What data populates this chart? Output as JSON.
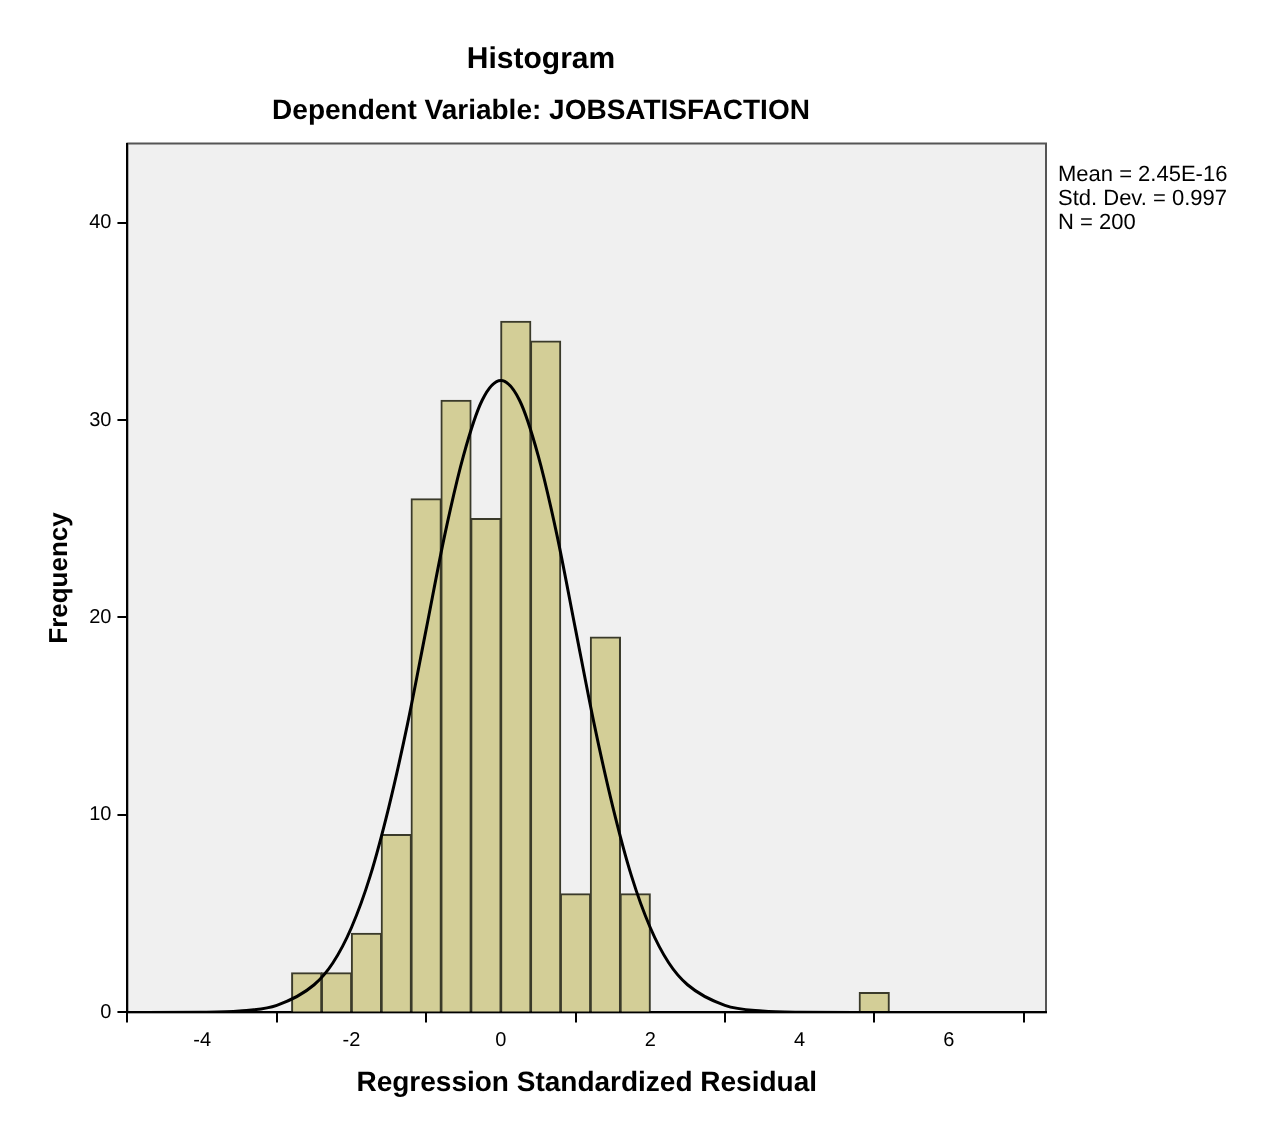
{
  "chart_data": {
    "type": "histogram",
    "title": "Histogram",
    "subtitle": "Dependent Variable: JOBSATISFACTION",
    "xlabel": "Regression Standardized Residual",
    "ylabel": "Frequency",
    "bins": [
      -2.8,
      -2.4,
      -2.0,
      -1.6,
      -1.2,
      -0.8,
      -0.4,
      0,
      0.4,
      0.8,
      1.2,
      1.6,
      2.0,
      2.4,
      2.8,
      3.2,
      3.6,
      4.0,
      4.4,
      4.8,
      5.2
    ],
    "values": [
      2,
      2,
      4,
      9,
      26,
      31,
      25,
      35,
      34,
      6,
      19,
      6,
      0,
      0,
      0,
      0,
      0,
      0,
      0,
      1
    ],
    "color": "#d3ce97",
    "series": [
      {
        "type": "line",
        "color": "#000000",
        "x": [
          -5,
          -4,
          -3.5,
          -3,
          -2.5,
          -2.25,
          -2,
          -1.75,
          -1.5,
          -1.25,
          -1,
          -0.75,
          -0.5,
          -0.25,
          0,
          0.25,
          0.5,
          0.75,
          1,
          1.25,
          1.5,
          1.75,
          2,
          2.25,
          2.5,
          3,
          3.5,
          4,
          5,
          6,
          7
        ],
        "values": [
          0,
          0.01,
          0.07,
          0.36,
          1.4,
          2.5,
          4.3,
          6.9,
          10.4,
          14.6,
          19.4,
          24.2,
          28.2,
          31,
          32,
          31,
          28.2,
          24.2,
          19.4,
          14.6,
          10.4,
          6.9,
          4.3,
          2.5,
          1.4,
          0.36,
          0.07,
          0.01,
          0,
          0,
          0
        ]
      }
    ],
    "xlim": [
      -5,
      7.3
    ],
    "xticks": [
      -4,
      -2,
      0,
      2,
      4,
      6
    ],
    "ylim": [
      0,
      44
    ],
    "yticks": [
      0,
      10,
      20,
      30,
      40
    ],
    "grid": false,
    "legend": false,
    "marker": "none",
    "line_style": "solid",
    "annotations": [
      "Mean = 2.45E-16",
      "Std. Dev. = 0.997",
      "N = 200"
    ]
  }
}
